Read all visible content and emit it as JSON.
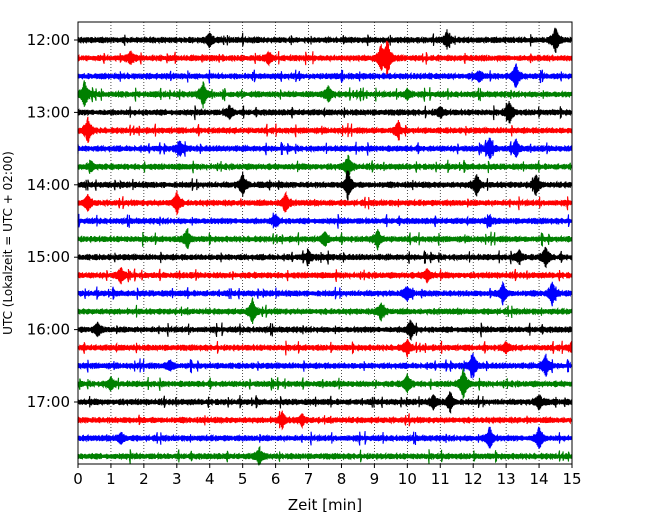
{
  "chart_data": {
    "type": "line",
    "title": "",
    "xlabel": "Zeit  [min]",
    "ylabel": "UTC (Lokalzeit = UTC + 02:00)",
    "xlim": [
      0,
      15
    ],
    "x_ticks": [
      0,
      1,
      2,
      3,
      4,
      5,
      6,
      7,
      8,
      9,
      10,
      11,
      12,
      13,
      14,
      15
    ],
    "y_tick_labels": [
      "12:00",
      "13:00",
      "14:00",
      "15:00",
      "16:00",
      "17:00"
    ],
    "row_minutes": 15,
    "grid_x": true,
    "grid_style": "dotted",
    "colors": [
      "#000000",
      "#ff0000",
      "#0000ff",
      "#008000"
    ],
    "rows": [
      {
        "time": "12:00",
        "color": "#000000",
        "events": [
          [
            14.5,
            1.0
          ],
          [
            11.2,
            0.6
          ],
          [
            4.0,
            0.5
          ]
        ]
      },
      {
        "time": "12:15",
        "color": "#ff0000",
        "events": [
          [
            9.4,
            1.3
          ],
          [
            9.2,
            1.0
          ],
          [
            1.6,
            0.5
          ],
          [
            5.8,
            0.4
          ]
        ]
      },
      {
        "time": "12:30",
        "color": "#0000ff",
        "events": [
          [
            13.3,
            1.0
          ],
          [
            12.2,
            0.4
          ]
        ]
      },
      {
        "time": "12:45",
        "color": "#008000",
        "events": [
          [
            0.2,
            1.1
          ],
          [
            3.8,
            1.0
          ],
          [
            7.6,
            0.6
          ],
          [
            10.0,
            0.4
          ]
        ]
      },
      {
        "time": "13:00",
        "color": "#000000",
        "events": [
          [
            13.1,
            0.9
          ],
          [
            4.6,
            0.5
          ],
          [
            11.0,
            0.4
          ]
        ]
      },
      {
        "time": "13:15",
        "color": "#ff0000",
        "events": [
          [
            0.3,
            1.0
          ],
          [
            9.7,
            0.5
          ]
        ]
      },
      {
        "time": "13:30",
        "color": "#0000ff",
        "events": [
          [
            12.5,
            0.9
          ],
          [
            13.3,
            0.7
          ],
          [
            3.1,
            0.5
          ]
        ]
      },
      {
        "time": "13:45",
        "color": "#008000",
        "events": [
          [
            8.2,
            0.9
          ],
          [
            0.4,
            0.4
          ]
        ]
      },
      {
        "time": "14:00",
        "color": "#000000",
        "events": [
          [
            8.2,
            1.1
          ],
          [
            5.0,
            0.9
          ],
          [
            12.1,
            0.9
          ],
          [
            13.9,
            0.8
          ]
        ]
      },
      {
        "time": "14:15",
        "color": "#ff0000",
        "events": [
          [
            3.0,
            0.9
          ],
          [
            6.3,
            0.8
          ],
          [
            0.3,
            0.6
          ]
        ]
      },
      {
        "time": "14:30",
        "color": "#0000ff",
        "events": [
          [
            6.0,
            0.5
          ],
          [
            12.5,
            0.4
          ]
        ]
      },
      {
        "time": "14:45",
        "color": "#008000",
        "events": [
          [
            3.3,
            0.7
          ],
          [
            9.1,
            0.7
          ],
          [
            7.5,
            0.5
          ]
        ]
      },
      {
        "time": "15:00",
        "color": "#000000",
        "events": [
          [
            14.2,
            0.8
          ],
          [
            13.4,
            0.5
          ],
          [
            7.0,
            0.4
          ]
        ]
      },
      {
        "time": "15:15",
        "color": "#ff0000",
        "events": [
          [
            1.3,
            0.6
          ],
          [
            10.6,
            0.5
          ]
        ]
      },
      {
        "time": "15:30",
        "color": "#0000ff",
        "events": [
          [
            14.4,
            0.9
          ],
          [
            12.9,
            0.8
          ],
          [
            10.0,
            0.5
          ]
        ]
      },
      {
        "time": "15:45",
        "color": "#008000",
        "events": [
          [
            5.3,
            1.0
          ],
          [
            9.2,
            0.7
          ]
        ]
      },
      {
        "time": "16:00",
        "color": "#000000",
        "events": [
          [
            10.1,
            0.8
          ],
          [
            0.6,
            0.5
          ]
        ]
      },
      {
        "time": "16:15",
        "color": "#ff0000",
        "events": [
          [
            10.0,
            0.6
          ],
          [
            13.0,
            0.4
          ],
          [
            15.0,
            0.4
          ]
        ]
      },
      {
        "time": "16:30",
        "color": "#0000ff",
        "events": [
          [
            12.0,
            0.9
          ],
          [
            14.2,
            0.9
          ],
          [
            2.8,
            0.4
          ]
        ]
      },
      {
        "time": "16:45",
        "color": "#008000",
        "events": [
          [
            11.7,
            1.2
          ],
          [
            10.0,
            0.7
          ],
          [
            1.0,
            0.5
          ]
        ]
      },
      {
        "time": "17:00",
        "color": "#000000",
        "events": [
          [
            11.3,
            0.8
          ],
          [
            14.0,
            0.6
          ],
          [
            10.8,
            0.5
          ]
        ]
      },
      {
        "time": "17:15",
        "color": "#ff0000",
        "events": [
          [
            6.2,
            0.6
          ],
          [
            6.8,
            0.4
          ]
        ]
      },
      {
        "time": "17:30",
        "color": "#0000ff",
        "events": [
          [
            14.0,
            0.9
          ],
          [
            12.5,
            0.9
          ],
          [
            1.3,
            0.4
          ]
        ]
      },
      {
        "time": "17:45",
        "color": "#008000",
        "events": [
          [
            5.5,
            0.6
          ]
        ]
      }
    ]
  }
}
